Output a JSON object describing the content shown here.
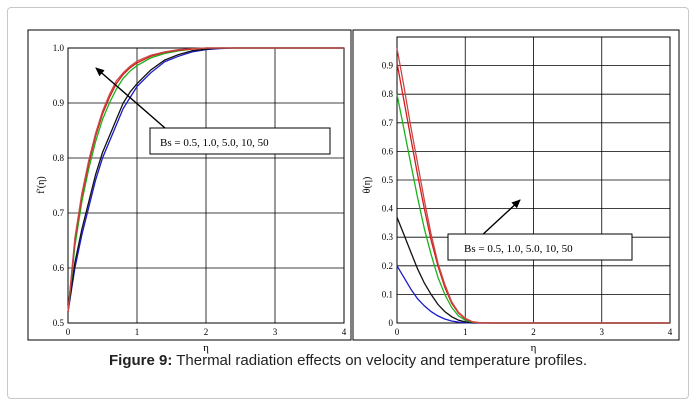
{
  "caption": {
    "label": "Figure 9:",
    "text": " Thermal radiation effects on velocity and temperature profiles."
  },
  "colors": {
    "series": [
      "#1a1acc",
      "#111111",
      "#19b219",
      "#d41a1a",
      "#c84848"
    ],
    "frame": "#c8c8c8"
  },
  "chart_data": [
    {
      "type": "line",
      "title": "",
      "xlabel": "η",
      "ylabel": "f′(η)",
      "xlim": [
        0,
        4
      ],
      "ylim": [
        0.5,
        1.0
      ],
      "xticks": [
        "0",
        "1",
        "2",
        "3",
        "4"
      ],
      "yticks": [
        "0.5",
        "0.6",
        "0.7",
        "0.8",
        "0.9",
        "1.0"
      ],
      "grid": true,
      "annotation": "Bs = 0.5, 1.0, 5.0, 10, 50",
      "x": [
        0,
        0.1,
        0.2,
        0.3,
        0.4,
        0.5,
        0.6,
        0.7,
        0.8,
        0.9,
        1.0,
        1.2,
        1.4,
        1.6,
        1.8,
        2.0,
        2.2,
        2.4,
        2.6,
        3.0,
        3.5,
        4.0
      ],
      "series": [
        {
          "values": [
            0.52,
            0.6,
            0.66,
            0.71,
            0.76,
            0.8,
            0.83,
            0.86,
            0.89,
            0.91,
            0.93,
            0.955,
            0.975,
            0.985,
            0.993,
            0.997,
            0.999,
            1.0,
            1.0,
            1.0,
            1.0,
            1.0
          ]
        },
        {
          "values": [
            0.52,
            0.61,
            0.67,
            0.72,
            0.77,
            0.81,
            0.84,
            0.87,
            0.9,
            0.92,
            0.935,
            0.96,
            0.978,
            0.988,
            0.995,
            0.998,
            1.0,
            1.0,
            1.0,
            1.0,
            1.0,
            1.0
          ]
        },
        {
          "values": [
            0.52,
            0.64,
            0.72,
            0.78,
            0.83,
            0.87,
            0.9,
            0.925,
            0.945,
            0.958,
            0.968,
            0.982,
            0.99,
            0.995,
            0.998,
            1.0,
            1.0,
            1.0,
            1.0,
            1.0,
            1.0,
            1.0
          ]
        },
        {
          "values": [
            0.52,
            0.65,
            0.73,
            0.79,
            0.84,
            0.88,
            0.91,
            0.935,
            0.952,
            0.964,
            0.973,
            0.985,
            0.992,
            0.996,
            0.998,
            1.0,
            1.0,
            1.0,
            1.0,
            1.0,
            1.0,
            1.0
          ]
        },
        {
          "values": [
            0.52,
            0.655,
            0.735,
            0.795,
            0.845,
            0.885,
            0.915,
            0.94,
            0.955,
            0.967,
            0.976,
            0.987,
            0.993,
            0.997,
            0.999,
            1.0,
            1.0,
            1.0,
            1.0,
            1.0,
            1.0,
            1.0
          ]
        }
      ]
    },
    {
      "type": "line",
      "title": "",
      "xlabel": "η",
      "ylabel": "θ(η)",
      "xlim": [
        0,
        4
      ],
      "ylim": [
        0,
        1.0
      ],
      "xticks": [
        "0",
        "1",
        "2",
        "3",
        "4"
      ],
      "yticks": [
        "0",
        "0.1",
        "0.2",
        "0.3",
        "0.4",
        "0.5",
        "0.6",
        "0.7",
        "0.8",
        "0.9"
      ],
      "grid": true,
      "annotation": "Bs  = 0.5, 1.0, 5.0, 10, 50",
      "x": [
        0,
        0.1,
        0.2,
        0.3,
        0.4,
        0.5,
        0.6,
        0.7,
        0.8,
        0.9,
        1.0,
        1.1,
        1.2,
        1.4,
        1.6,
        2.0,
        3.0,
        4.0
      ],
      "series": [
        {
          "values": [
            0.2,
            0.16,
            0.12,
            0.085,
            0.06,
            0.04,
            0.025,
            0.014,
            0.007,
            0.003,
            0.001,
            0,
            0,
            0,
            0,
            0,
            0,
            0
          ]
        },
        {
          "values": [
            0.37,
            0.31,
            0.25,
            0.19,
            0.14,
            0.1,
            0.065,
            0.04,
            0.022,
            0.01,
            0.004,
            0.001,
            0,
            0,
            0,
            0,
            0,
            0
          ]
        },
        {
          "values": [
            0.8,
            0.68,
            0.56,
            0.44,
            0.33,
            0.24,
            0.16,
            0.1,
            0.055,
            0.025,
            0.01,
            0.003,
            0.001,
            0,
            0,
            0,
            0,
            0
          ]
        },
        {
          "values": [
            0.91,
            0.78,
            0.65,
            0.52,
            0.4,
            0.29,
            0.2,
            0.125,
            0.07,
            0.035,
            0.014,
            0.004,
            0.001,
            0,
            0,
            0,
            0,
            0
          ]
        },
        {
          "values": [
            0.96,
            0.83,
            0.69,
            0.56,
            0.43,
            0.31,
            0.21,
            0.135,
            0.075,
            0.038,
            0.016,
            0.005,
            0.001,
            0,
            0,
            0,
            0,
            0
          ]
        }
      ]
    }
  ]
}
